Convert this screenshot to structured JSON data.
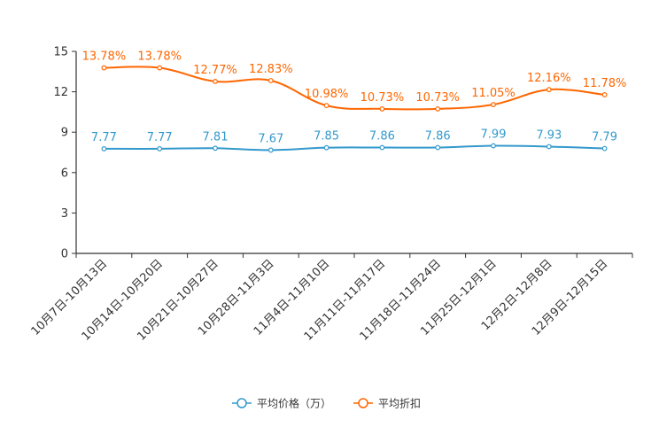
{
  "chart_data": {
    "type": "line",
    "title": "",
    "xlabel": "",
    "ylabel": "",
    "ylim": [
      0,
      15
    ],
    "yticks": [
      "0",
      "3",
      "6",
      "9",
      "12",
      "15"
    ],
    "grid": false,
    "legend_position": "bottom-center",
    "categories": [
      "10月7日-10月13日",
      "10月14日-10月20日",
      "10月21日-10月27日",
      "10月28日-11月3日",
      "11月4日-11月10日",
      "11月11日-11月17日",
      "11月18日-11月24日",
      "11月25日-12月1日",
      "12月2日-12月8日",
      "12月9日-12月15日"
    ],
    "series": [
      {
        "name": "平均价格（万）",
        "color": "#3399cc",
        "values": [
          7.77,
          7.77,
          7.81,
          7.67,
          7.85,
          7.86,
          7.86,
          7.99,
          7.93,
          7.79
        ],
        "labels": [
          "7.77",
          "7.77",
          "7.81",
          "7.67",
          "7.85",
          "7.86",
          "7.86",
          "7.99",
          "7.93",
          "7.79"
        ]
      },
      {
        "name": "平均折扣",
        "color": "#ff6600",
        "values": [
          13.78,
          13.78,
          12.77,
          12.83,
          10.98,
          10.73,
          10.73,
          11.05,
          12.16,
          11.78
        ],
        "labels": [
          "13.78%",
          "13.78%",
          "12.77%",
          "12.83%",
          "10.98%",
          "10.73%",
          "10.73%",
          "11.05%",
          "12.16%",
          "11.78%"
        ]
      }
    ]
  }
}
